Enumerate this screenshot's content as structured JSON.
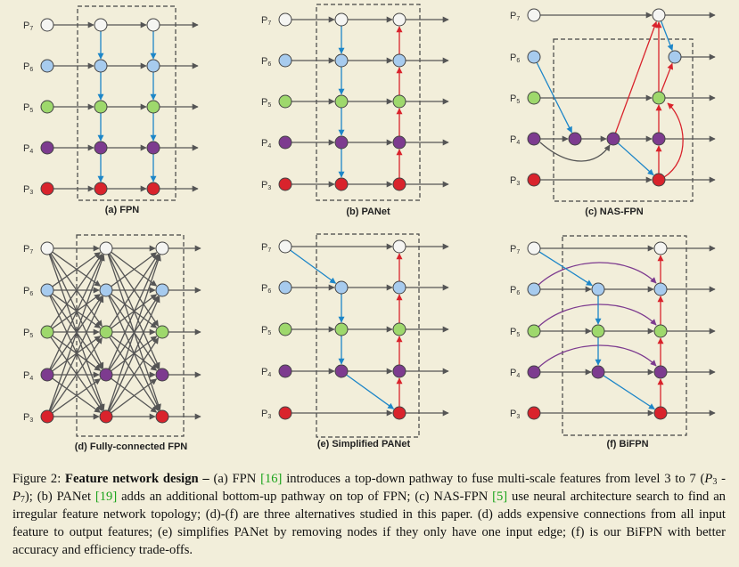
{
  "colors": {
    "P7": "#f5f5f2",
    "P6": "#a7cbee",
    "P5": "#9ed86c",
    "P4": "#7d3b8f",
    "P3": "#d9232c",
    "blue_edge": "#1d86c8",
    "red_edge": "#d9232c",
    "purple_edge": "#7d3b8f",
    "gray_edge": "#555555"
  },
  "levels": [
    {
      "base": "P",
      "sub": "7"
    },
    {
      "base": "P",
      "sub": "6"
    },
    {
      "base": "P",
      "sub": "5"
    },
    {
      "base": "P",
      "sub": "4"
    },
    {
      "base": "P",
      "sub": "3"
    }
  ],
  "panels": [
    {
      "id": "fpn",
      "title": "(a) FPN"
    },
    {
      "id": "panet",
      "title": "(b) PANet"
    },
    {
      "id": "nasfpn",
      "title": "(c) NAS-FPN"
    },
    {
      "id": "fc",
      "title": "(d) Fully-connected FPN"
    },
    {
      "id": "spanet",
      "title": "(e) Simplified PANet"
    },
    {
      "id": "bifpn",
      "title": "(f) BiFPN"
    }
  ],
  "caption": {
    "label": "Figure 2:",
    "bold": "Feature network design –",
    "parts": [
      {
        "t": " (a) FPN "
      },
      {
        "t": "[16]",
        "ref": true
      },
      {
        "t": " introduces a top-down pathway to fuse multi-scale features from level 3 to 7 ("
      },
      {
        "t": "P",
        "i": true
      },
      {
        "t": "3",
        "sub": true
      },
      {
        "t": " - "
      },
      {
        "t": "P",
        "i": true
      },
      {
        "t": "7",
        "sub": true
      },
      {
        "t": "); (b) PANet "
      },
      {
        "t": "[19]",
        "ref": true
      },
      {
        "t": " adds an additional bottom-up pathway on top of FPN; (c) NAS-FPN "
      },
      {
        "t": "[5]",
        "ref": true
      },
      {
        "t": " use neural architecture search to find an irregular feature network topology; (d)-(f) are three alternatives studied in this paper. (d) adds expensive connections from all input feature to output features; (e) simplifies PANet by removing nodes if they only have one input edge; (f) is our BiFPN with better accuracy and efficiency trade-offs."
      }
    ]
  }
}
